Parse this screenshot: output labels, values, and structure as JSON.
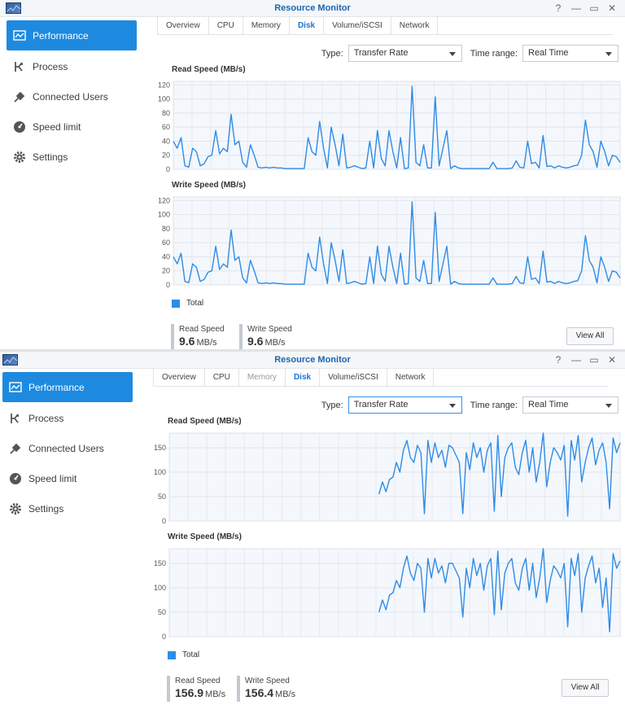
{
  "window1": {
    "title": "Resource Monitor",
    "controls": [
      "?",
      "—",
      "▭",
      "✕"
    ],
    "sidebar": [
      {
        "label": "Performance",
        "icon": "performance-icon",
        "active": true
      },
      {
        "label": "Process",
        "icon": "process-icon"
      },
      {
        "label": "Connected Users",
        "icon": "connected-users-icon"
      },
      {
        "label": "Speed limit",
        "icon": "speed-limit-icon"
      },
      {
        "label": "Settings",
        "icon": "settings-icon"
      }
    ],
    "tabs": [
      "Overview",
      "CPU",
      "Memory",
      "Disk",
      "Volume/iSCSI",
      "Network"
    ],
    "active_tab": "Disk",
    "type_label": "Type:",
    "type_value": "Transfer Rate",
    "time_label": "Time range:",
    "time_value": "Real Time",
    "legend_label": "Total",
    "read_label": "Read Speed",
    "read_value": "9.6",
    "read_unit": "MB/s",
    "write_label": "Write Speed",
    "write_value": "9.6",
    "write_unit": "MB/s",
    "view_all": "View All"
  },
  "window2": {
    "title": "Resource Monitor",
    "controls": [
      "?",
      "—",
      "▭",
      "✕"
    ],
    "sidebar": [
      {
        "label": "Performance",
        "icon": "performance-icon",
        "active": true
      },
      {
        "label": "Process",
        "icon": "process-icon"
      },
      {
        "label": "Connected Users",
        "icon": "connected-users-icon"
      },
      {
        "label": "Speed limit",
        "icon": "speed-limit-icon"
      },
      {
        "label": "Settings",
        "icon": "settings-icon"
      }
    ],
    "tabs": [
      "Overview",
      "CPU",
      "Memory",
      "Disk",
      "Volume/iSCSI",
      "Network"
    ],
    "active_tab": "Disk",
    "type_label": "Type:",
    "type_value": "Transfer Rate",
    "time_label": "Time range:",
    "time_value": "Real Time",
    "legend_label": "Total",
    "read_label": "Read Speed",
    "read_value": "156.9",
    "read_unit": "MB/s",
    "write_label": "Write Speed",
    "write_value": "156.4",
    "write_unit": "MB/s",
    "view_all": "View All"
  },
  "colors": {
    "accent": "#1d8ae0",
    "line": "#2e8ce6",
    "title": "#1a66b3"
  },
  "chart_data": [
    {
      "type": "line",
      "title": "Read Speed (MB/s)",
      "ylim": [
        0,
        125
      ],
      "yticks": [
        0,
        20,
        40,
        60,
        80,
        100,
        120
      ],
      "series": [
        {
          "values": [
            40,
            30,
            45,
            5,
            3,
            30,
            25,
            5,
            8,
            18,
            20,
            55,
            22,
            30,
            25,
            78,
            35,
            40,
            10,
            3,
            35,
            20,
            3,
            2,
            3,
            2,
            3,
            2,
            2,
            1,
            1,
            1,
            1,
            1,
            1,
            45,
            25,
            20,
            68,
            30,
            2,
            60,
            35,
            5,
            50,
            2,
            3,
            5,
            3,
            1,
            2,
            40,
            2,
            55,
            15,
            5,
            55,
            25,
            2,
            45,
            1,
            2,
            118,
            10,
            5,
            35,
            2,
            2,
            103,
            5,
            30,
            55,
            1,
            5,
            2,
            1,
            1,
            1,
            1,
            1,
            1,
            1,
            1,
            10,
            1,
            1,
            1,
            1,
            2,
            12,
            3,
            2,
            40,
            8,
            10,
            2,
            48,
            4,
            5,
            2,
            5,
            3,
            2,
            3,
            5,
            6,
            20,
            70,
            35,
            25,
            3,
            40,
            25,
            5,
            20,
            18,
            10
          ]
        }
      ]
    },
    {
      "type": "line",
      "title": "Write Speed (MB/s)",
      "ylim": [
        0,
        125
      ],
      "yticks": [
        0,
        20,
        40,
        60,
        80,
        100,
        120
      ],
      "series": [
        {
          "values": [
            40,
            30,
            45,
            5,
            3,
            30,
            25,
            5,
            8,
            18,
            20,
            55,
            22,
            30,
            25,
            78,
            35,
            40,
            10,
            3,
            35,
            20,
            3,
            2,
            3,
            2,
            3,
            2,
            2,
            1,
            1,
            1,
            1,
            1,
            1,
            45,
            25,
            20,
            68,
            30,
            2,
            60,
            35,
            5,
            50,
            2,
            3,
            5,
            3,
            1,
            2,
            40,
            2,
            55,
            15,
            5,
            55,
            25,
            2,
            45,
            1,
            2,
            118,
            10,
            5,
            35,
            2,
            2,
            103,
            5,
            30,
            55,
            1,
            5,
            2,
            1,
            1,
            1,
            1,
            1,
            1,
            1,
            1,
            10,
            1,
            1,
            1,
            1,
            2,
            12,
            3,
            2,
            40,
            8,
            10,
            2,
            48,
            4,
            5,
            2,
            5,
            3,
            2,
            3,
            5,
            6,
            20,
            70,
            35,
            25,
            3,
            40,
            25,
            5,
            20,
            18,
            10
          ]
        }
      ]
    },
    {
      "type": "line",
      "title": "Read Speed (MB/s)",
      "ylim": [
        0,
        180
      ],
      "yticks": [
        0,
        50,
        100,
        150
      ],
      "series": [
        {
          "values": [
            null,
            null,
            null,
            null,
            null,
            null,
            null,
            null,
            null,
            null,
            null,
            null,
            null,
            null,
            null,
            null,
            null,
            null,
            null,
            null,
            null,
            null,
            null,
            null,
            null,
            null,
            null,
            null,
            null,
            null,
            null,
            null,
            null,
            null,
            null,
            null,
            null,
            null,
            null,
            null,
            null,
            null,
            null,
            null,
            null,
            null,
            null,
            null,
            null,
            null,
            null,
            null,
            null,
            null,
            null,
            null,
            null,
            null,
            null,
            null,
            55,
            80,
            60,
            85,
            90,
            120,
            100,
            145,
            165,
            130,
            120,
            155,
            140,
            15,
            165,
            120,
            160,
            130,
            145,
            110,
            155,
            150,
            135,
            120,
            15,
            140,
            105,
            160,
            130,
            150,
            100,
            145,
            160,
            20,
            175,
            50,
            130,
            150,
            160,
            110,
            95,
            140,
            165,
            100,
            150,
            80,
            120,
            180,
            70,
            120,
            150,
            140,
            125,
            155,
            10,
            165,
            125,
            175,
            80,
            120,
            150,
            170,
            115,
            145,
            160,
            120,
            25,
            170,
            140,
            160
          ]
        }
      ]
    },
    {
      "type": "line",
      "title": "Write Speed (MB/s)",
      "ylim": [
        0,
        180
      ],
      "yticks": [
        0,
        50,
        100,
        150
      ],
      "series": [
        {
          "values": [
            null,
            null,
            null,
            null,
            null,
            null,
            null,
            null,
            null,
            null,
            null,
            null,
            null,
            null,
            null,
            null,
            null,
            null,
            null,
            null,
            null,
            null,
            null,
            null,
            null,
            null,
            null,
            null,
            null,
            null,
            null,
            null,
            null,
            null,
            null,
            null,
            null,
            null,
            null,
            null,
            null,
            null,
            null,
            null,
            null,
            null,
            null,
            null,
            null,
            null,
            null,
            null,
            null,
            null,
            null,
            null,
            null,
            null,
            null,
            null,
            50,
            75,
            55,
            85,
            90,
            115,
            100,
            140,
            165,
            130,
            115,
            150,
            140,
            50,
            160,
            120,
            160,
            130,
            145,
            110,
            150,
            150,
            135,
            120,
            40,
            140,
            100,
            160,
            125,
            150,
            95,
            145,
            160,
            45,
            175,
            55,
            130,
            150,
            160,
            110,
            95,
            140,
            160,
            95,
            150,
            80,
            120,
            180,
            70,
            115,
            145,
            135,
            120,
            150,
            20,
            160,
            125,
            170,
            50,
            120,
            145,
            165,
            110,
            140,
            60,
            120,
            10,
            170,
            140,
            155
          ]
        }
      ]
    }
  ]
}
